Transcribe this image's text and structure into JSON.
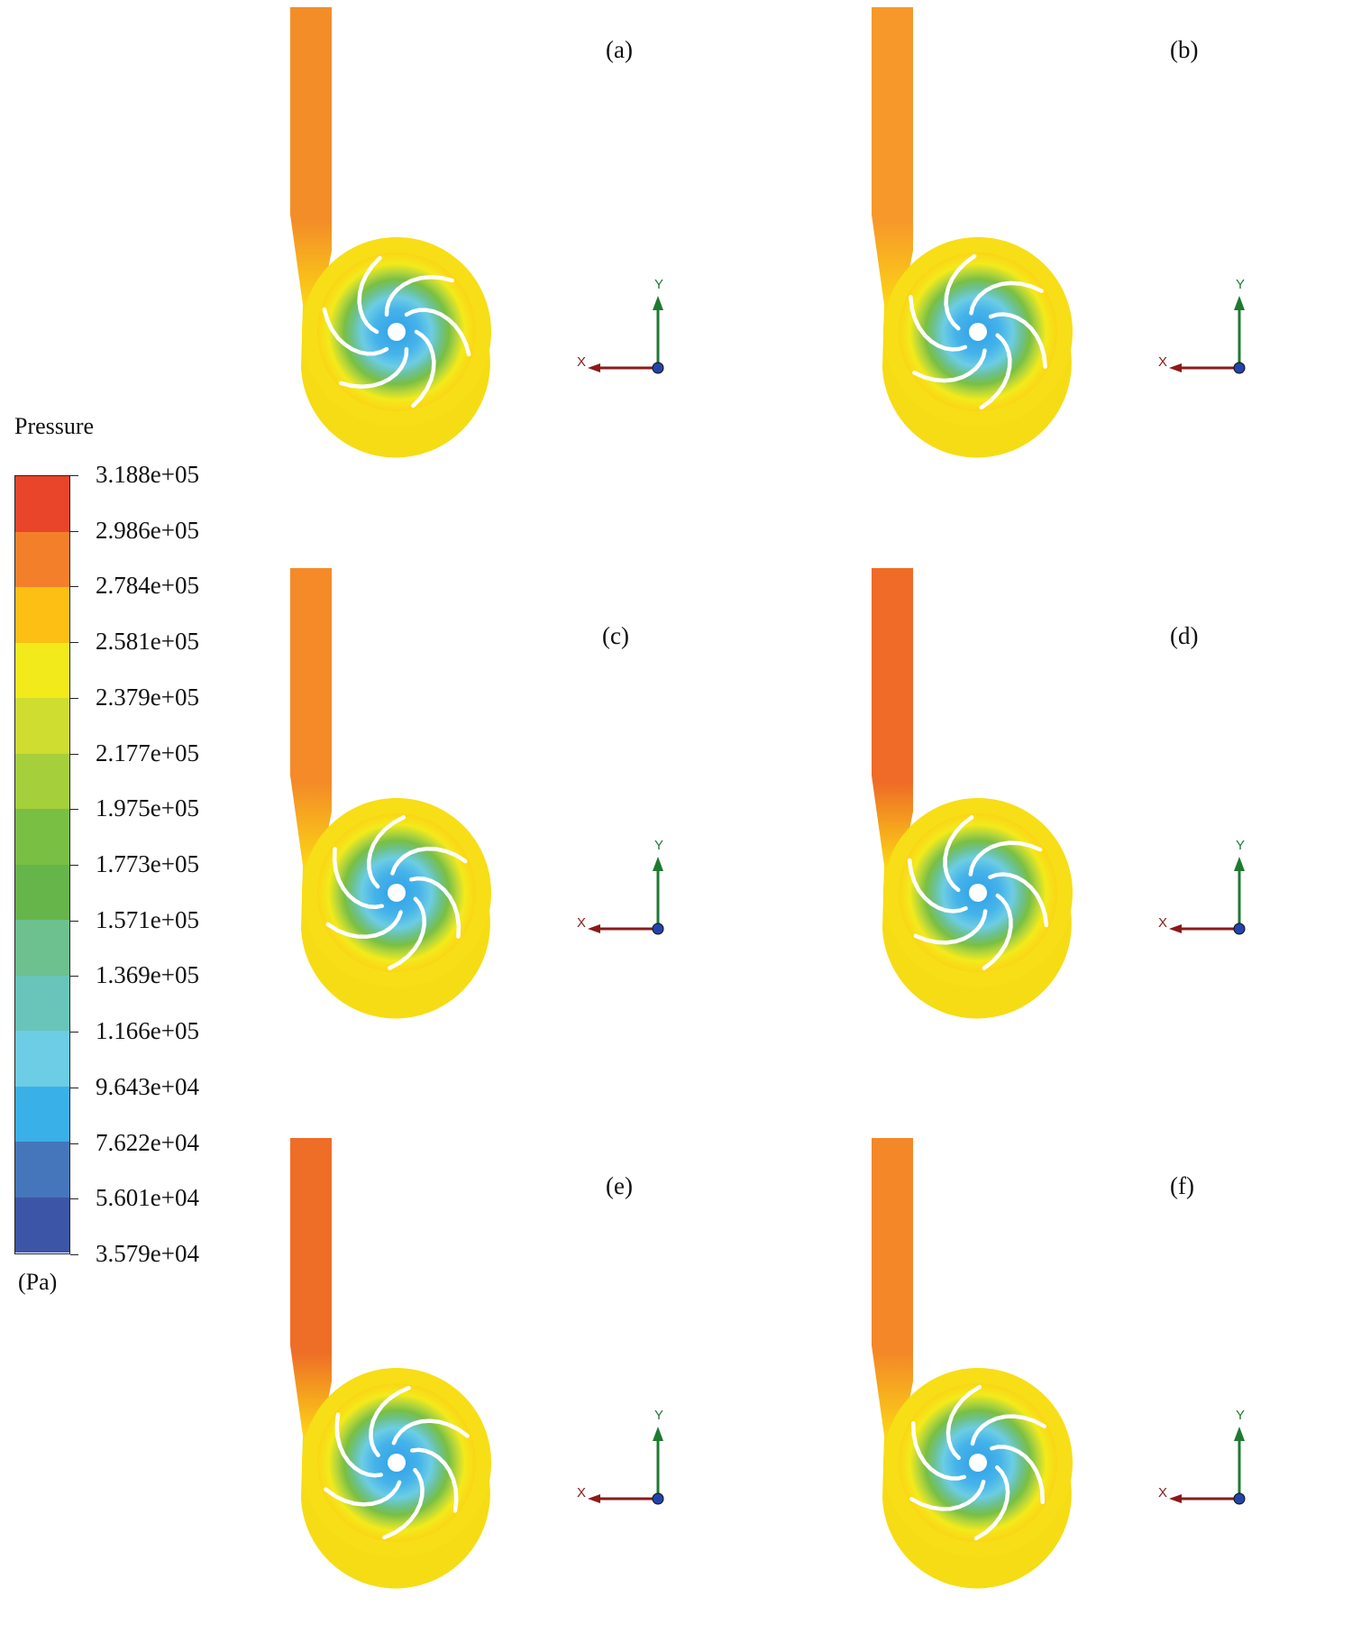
{
  "legend": {
    "title": "Pressure",
    "unit": "(Pa)",
    "labels": [
      "3.188e+05",
      "2.986e+05",
      "2.784e+05",
      "2.581e+05",
      "2.379e+05",
      "2.177e+05",
      "1.975e+05",
      "1.773e+05",
      "1.571e+05",
      "1.369e+05",
      "1.166e+05",
      "9.643e+04",
      "7.622e+04",
      "5.601e+04",
      "3.579e+04"
    ],
    "colors": [
      "#e8452a",
      "#f47f2a",
      "#fdbf14",
      "#f3ea1b",
      "#cfdc30",
      "#a6cf3c",
      "#79bf44",
      "#66b54a",
      "#6cc18e",
      "#69c4ba",
      "#6ccde4",
      "#3ab0e8",
      "#4576bb",
      "#3d55a6"
    ]
  },
  "panels": [
    {
      "label": "(a)",
      "outlet_color": "#f38d28",
      "axis": {
        "x": "X",
        "y": "Y"
      }
    },
    {
      "label": "(b)",
      "outlet_color": "#f7982a",
      "axis": {
        "x": "X",
        "y": "Y"
      }
    },
    {
      "label": "(c)",
      "outlet_color": "#f48a28",
      "axis": {
        "x": "X",
        "y": "Y"
      }
    },
    {
      "label": "(d)",
      "outlet_color": "#ef6b27",
      "axis": {
        "x": "X",
        "y": "Y"
      }
    },
    {
      "label": "(e)",
      "outlet_color": "#ee6d27",
      "axis": {
        "x": "X",
        "y": "Y"
      }
    },
    {
      "label": "(f)",
      "outlet_color": "#f48728",
      "axis": {
        "x": "X",
        "y": "Y"
      }
    }
  ]
}
